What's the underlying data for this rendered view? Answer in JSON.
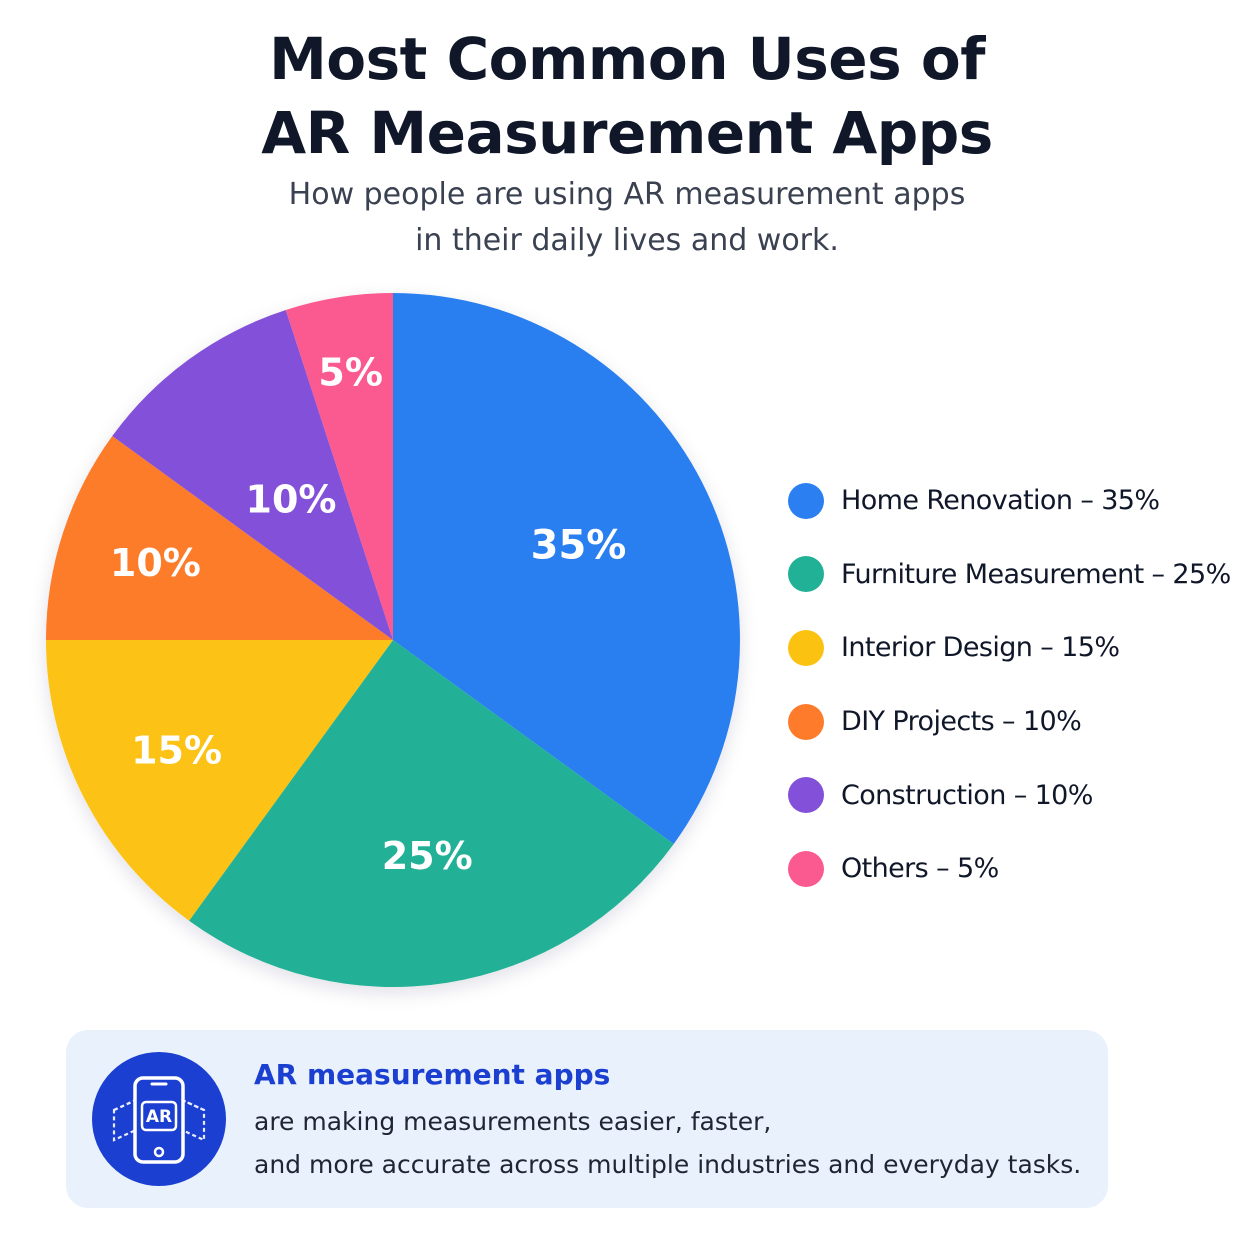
{
  "header": {
    "title_line1": "Most Common Uses of",
    "title_line2": "AR Measurement Apps",
    "subtitle_line1": "How people are using AR measurement apps",
    "subtitle_line2": "in their daily lives and work."
  },
  "chart_data": {
    "type": "pie",
    "title": "Most Common Uses of AR Measurement Apps",
    "subtitle": "How people are using AR measurement apps in their daily lives and work.",
    "categories": [
      "Home Renovation",
      "Furniture Measurement",
      "Interior Design",
      "DIY Projects",
      "Construction",
      "Others"
    ],
    "values": [
      35,
      25,
      15,
      10,
      10,
      5
    ],
    "value_labels": [
      "35%",
      "25%",
      "15%",
      "10%",
      "10%",
      "5%"
    ],
    "colors": [
      "#2b7ff0",
      "#20b196",
      "#fcc212",
      "#fd7b2b",
      "#8351d9",
      "#fb5a91"
    ],
    "legend_position": "right",
    "legend_labels": [
      "Home Renovation – 35%",
      "Furniture Measurement – 25%",
      "Interior Design – 15%",
      "DIY Projects – 10%",
      "Construction – 10%",
      "Others – 5%"
    ]
  },
  "callout": {
    "icon": "ar-phone-icon",
    "icon_text": "AR",
    "icon_color": "#1b3fd1",
    "heading": "AR measurement apps",
    "line1": "are making measurements easier, faster,",
    "line2": "and more accurate across multiple industries and everyday tasks."
  }
}
